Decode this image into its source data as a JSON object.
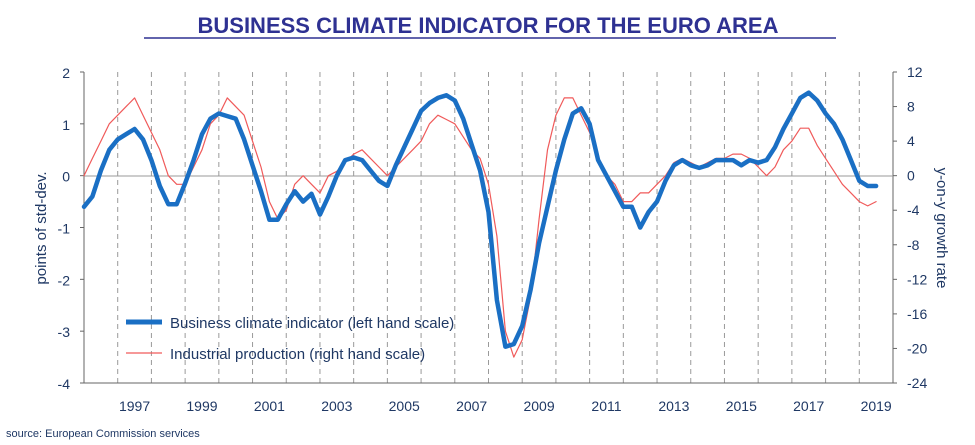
{
  "chart_data": {
    "type": "line",
    "title": "BUSINESS CLIMATE INDICATOR FOR THE EURO AREA",
    "ylabel_left": "points of std-dev.",
    "ylabel_right": "y-on-y growth rate",
    "source": "source: European Commission services",
    "ylim_left": [
      -4,
      2
    ],
    "ylim_right": [
      -24,
      12
    ],
    "yticks_left": [
      "2",
      "1",
      "0",
      "-1",
      "-2",
      "-3",
      "-4"
    ],
    "yticks_right": [
      "12",
      "8",
      "4",
      "0",
      "-4",
      "-8",
      "-12",
      "-16",
      "-20",
      "-24"
    ],
    "x_range": [
      1996.0,
      2020.0
    ],
    "xticks": [
      "1997",
      "1999",
      "2001",
      "2003",
      "2005",
      "2007",
      "2009",
      "2011",
      "2013",
      "2015",
      "2017",
      "2019"
    ],
    "gridlines": "vertical dashed at year starts",
    "legend_position": "bottom-left",
    "colors": {
      "bci": "#1a6fc4",
      "ip": "#f05a5a",
      "text": "#1f3864",
      "grid": "#9a9a9a"
    },
    "series": [
      {
        "name": "Business climate indicator (left hand scale)",
        "axis": "left",
        "style": "thick",
        "x": [
          1996.0,
          1996.25,
          1996.5,
          1996.75,
          1997.0,
          1997.25,
          1997.5,
          1997.75,
          1998.0,
          1998.25,
          1998.5,
          1998.75,
          1999.0,
          1999.25,
          1999.5,
          1999.75,
          2000.0,
          2000.25,
          2000.5,
          2000.75,
          2001.0,
          2001.25,
          2001.5,
          2001.75,
          2002.0,
          2002.25,
          2002.5,
          2002.75,
          2003.0,
          2003.25,
          2003.5,
          2003.75,
          2004.0,
          2004.25,
          2004.5,
          2004.75,
          2005.0,
          2005.25,
          2005.5,
          2005.75,
          2006.0,
          2006.25,
          2006.5,
          2006.75,
          2007.0,
          2007.25,
          2007.5,
          2007.75,
          2008.0,
          2008.25,
          2008.5,
          2008.75,
          2009.0,
          2009.25,
          2009.5,
          2009.75,
          2010.0,
          2010.25,
          2010.5,
          2010.75,
          2011.0,
          2011.25,
          2011.5,
          2011.75,
          2012.0,
          2012.25,
          2012.5,
          2012.75,
          2013.0,
          2013.25,
          2013.5,
          2013.75,
          2014.0,
          2014.25,
          2014.5,
          2014.75,
          2015.0,
          2015.25,
          2015.5,
          2015.75,
          2016.0,
          2016.25,
          2016.5,
          2016.75,
          2017.0,
          2017.25,
          2017.5,
          2017.75,
          2018.0,
          2018.25,
          2018.5,
          2018.75,
          2019.0,
          2019.25,
          2019.5
        ],
        "values": [
          -0.6,
          -0.4,
          0.1,
          0.5,
          0.7,
          0.8,
          0.9,
          0.7,
          0.3,
          -0.2,
          -0.55,
          -0.55,
          -0.15,
          0.3,
          0.8,
          1.1,
          1.2,
          1.15,
          1.1,
          0.7,
          0.2,
          -0.3,
          -0.85,
          -0.85,
          -0.55,
          -0.3,
          -0.5,
          -0.35,
          -0.75,
          -0.4,
          0.0,
          0.3,
          0.35,
          0.3,
          0.1,
          -0.1,
          -0.2,
          0.2,
          0.55,
          0.9,
          1.25,
          1.4,
          1.5,
          1.55,
          1.45,
          1.1,
          0.6,
          0.1,
          -0.7,
          -2.4,
          -3.3,
          -3.25,
          -2.9,
          -2.2,
          -1.3,
          -0.6,
          0.1,
          0.7,
          1.2,
          1.3,
          1.0,
          0.3,
          0.0,
          -0.3,
          -0.6,
          -0.6,
          -1.0,
          -0.7,
          -0.5,
          -0.1,
          0.2,
          0.3,
          0.2,
          0.15,
          0.2,
          0.3,
          0.3,
          0.3,
          0.2,
          0.3,
          0.25,
          0.3,
          0.55,
          0.9,
          1.2,
          1.5,
          1.6,
          1.45,
          1.2,
          1.0,
          0.7,
          0.3,
          -0.1,
          -0.2,
          -0.2
        ]
      },
      {
        "name": "Industrial production (right hand scale)",
        "axis": "right",
        "style": "thin",
        "x": [
          1996.0,
          1996.25,
          1996.5,
          1996.75,
          1997.0,
          1997.25,
          1997.5,
          1997.75,
          1998.0,
          1998.25,
          1998.5,
          1998.75,
          1999.0,
          1999.25,
          1999.5,
          1999.75,
          2000.0,
          2000.25,
          2000.5,
          2000.75,
          2001.0,
          2001.25,
          2001.5,
          2001.75,
          2002.0,
          2002.25,
          2002.5,
          2002.75,
          2003.0,
          2003.25,
          2003.5,
          2003.75,
          2004.0,
          2004.25,
          2004.5,
          2004.75,
          2005.0,
          2005.25,
          2005.5,
          2005.75,
          2006.0,
          2006.25,
          2006.5,
          2006.75,
          2007.0,
          2007.25,
          2007.5,
          2007.75,
          2008.0,
          2008.25,
          2008.5,
          2008.75,
          2009.0,
          2009.25,
          2009.5,
          2009.75,
          2010.0,
          2010.25,
          2010.5,
          2010.75,
          2011.0,
          2011.25,
          2011.5,
          2011.75,
          2012.0,
          2012.25,
          2012.5,
          2012.75,
          2013.0,
          2013.25,
          2013.5,
          2013.75,
          2014.0,
          2014.25,
          2014.5,
          2014.75,
          2015.0,
          2015.25,
          2015.5,
          2015.75,
          2016.0,
          2016.25,
          2016.5,
          2016.75,
          2017.0,
          2017.25,
          2017.5,
          2017.75,
          2018.0,
          2018.25,
          2018.5,
          2018.75,
          2019.0,
          2019.25,
          2019.5
        ],
        "values": [
          0,
          2,
          4,
          6,
          7,
          8,
          9,
          7,
          5,
          3,
          0,
          -1,
          -1,
          1,
          3,
          6,
          7,
          9,
          8,
          7,
          4,
          1,
          -3,
          -5,
          -4,
          -1,
          0,
          -1,
          -2,
          0,
          0.5,
          1.5,
          2.5,
          3,
          2,
          1,
          0,
          1,
          2,
          3,
          4,
          6,
          7,
          6.5,
          6,
          4.5,
          3,
          2,
          -1,
          -7,
          -18,
          -21,
          -19,
          -14,
          -5,
          3,
          7,
          9,
          9,
          7,
          5,
          2,
          0,
          -1,
          -3,
          -3,
          -2,
          -2,
          -1,
          0,
          1.5,
          2,
          1.5,
          1,
          1.5,
          2,
          2,
          2.5,
          2.5,
          2,
          1,
          0,
          1,
          3,
          4,
          5.5,
          5.5,
          3.5,
          2,
          0.5,
          -1,
          -2,
          -3,
          -3.5,
          -3
        ]
      }
    ]
  }
}
